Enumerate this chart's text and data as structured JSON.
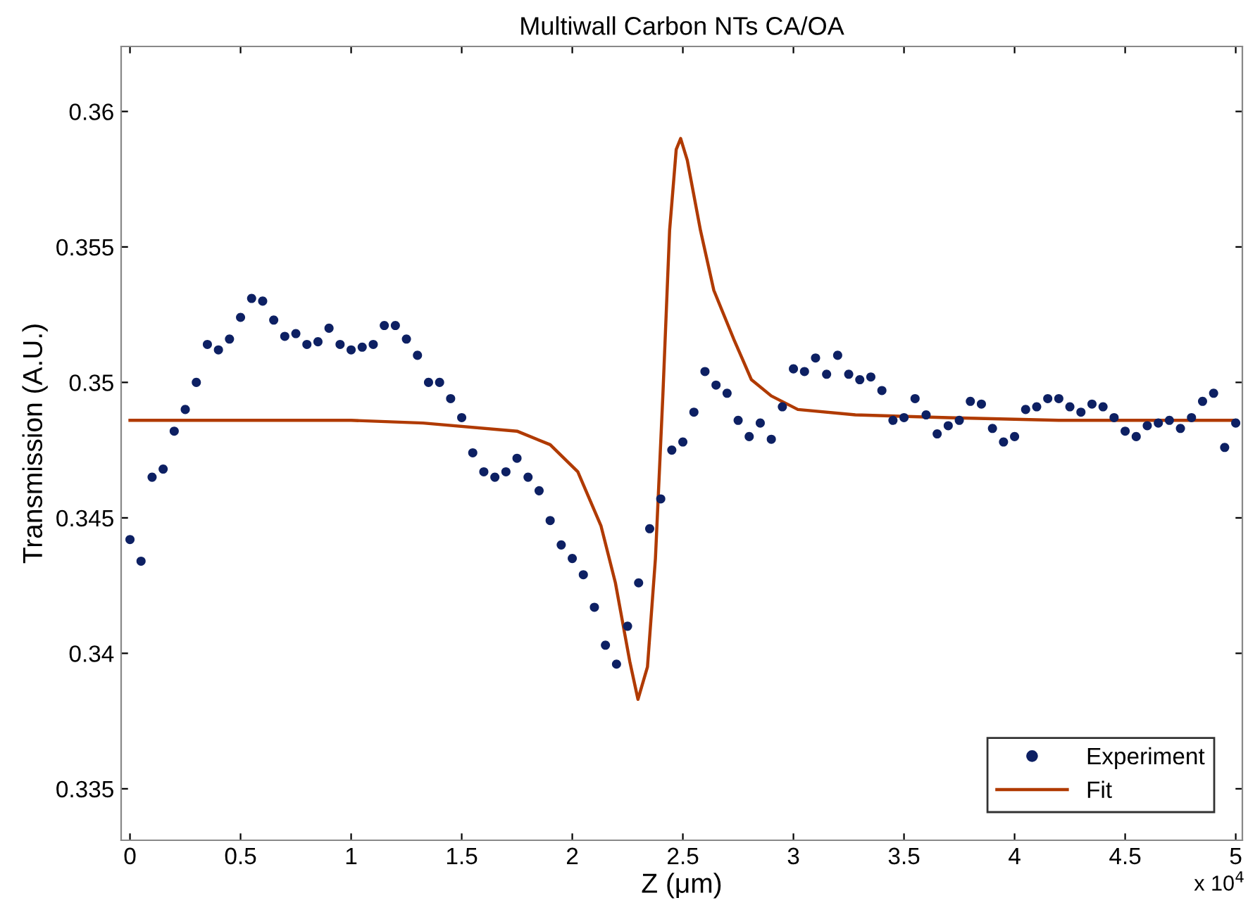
{
  "chart_data": {
    "type": "scatter",
    "title": "Multiwall Carbon NTs CA/OA",
    "xlabel": "Z (μm)",
    "ylabel": "Transmission (A.U.)",
    "annotations": [
      "x 10$^{4}$"
    ],
    "xlim": [
      -0.04,
      5.03
    ],
    "ylim": [
      0.3331,
      0.3624
    ],
    "xticks": [
      0,
      0.5,
      1,
      1.5,
      2,
      2.5,
      3,
      3.5,
      4,
      4.5,
      5
    ],
    "yticks": [
      0.335,
      0.34,
      0.345,
      0.35,
      0.355,
      0.36
    ],
    "grid": false,
    "legend": "bottom right",
    "series": [
      {
        "name": "Experiment",
        "marker": "circle",
        "color": "#0d2063",
        "x": [
          0,
          0.05,
          0.1,
          0.15,
          0.2,
          0.25,
          0.3,
          0.35,
          0.4,
          0.45,
          0.5,
          0.55,
          0.6,
          0.65,
          0.7,
          0.75,
          0.8,
          0.85,
          0.9,
          0.95,
          1,
          1.05,
          1.1,
          1.15,
          1.2,
          1.25,
          1.3,
          1.35,
          1.4,
          1.45,
          1.5,
          1.55,
          1.6,
          1.65,
          1.7,
          1.75,
          1.8,
          1.85,
          1.9,
          1.95,
          2,
          2.05,
          2.1,
          2.15,
          2.2,
          2.25,
          2.3,
          2.35,
          2.4,
          2.45,
          2.5,
          2.55,
          2.6,
          2.65,
          2.7,
          2.75,
          2.8,
          2.85,
          2.9,
          2.95,
          3,
          3.05,
          3.1,
          3.15,
          3.2,
          3.25,
          3.3,
          3.35,
          3.4,
          3.45,
          3.5,
          3.55,
          3.6,
          3.65,
          3.7,
          3.75,
          3.8,
          3.85,
          3.9,
          3.95,
          4,
          4.05,
          4.1,
          4.15,
          4.2,
          4.25,
          4.3,
          4.35,
          4.4,
          4.45,
          4.5,
          4.55,
          4.6,
          4.65,
          4.7,
          4.75,
          4.8,
          4.85,
          4.9,
          4.95,
          5
        ],
        "values": [
          0.3442,
          0.3434,
          0.3465,
          0.3468,
          0.3482,
          0.349,
          0.35,
          0.3514,
          0.3512,
          0.3516,
          0.3524,
          0.3531,
          0.353,
          0.3523,
          0.3517,
          0.3518,
          0.3514,
          0.3515,
          0.352,
          0.3514,
          0.3512,
          0.3513,
          0.3514,
          0.3521,
          0.3521,
          0.3516,
          0.351,
          0.35,
          0.35,
          0.3494,
          0.3487,
          0.3474,
          0.3467,
          0.3465,
          0.3467,
          0.3472,
          0.3465,
          0.346,
          0.3449,
          0.344,
          0.3435,
          0.3429,
          0.3417,
          0.3403,
          0.3396,
          0.341,
          0.3426,
          0.3446,
          0.3457,
          0.3475,
          0.3478,
          0.3489,
          0.3504,
          0.3499,
          0.3496,
          0.3486,
          0.348,
          0.3485,
          0.3479,
          0.3491,
          0.3505,
          0.3504,
          0.3509,
          0.3503,
          0.351,
          0.3503,
          0.3501,
          0.3502,
          0.3497,
          0.3486,
          0.3487,
          0.3494,
          0.3488,
          0.3481,
          0.3484,
          0.3486,
          0.3493,
          0.3492,
          0.3483,
          0.3478,
          0.348,
          0.349,
          0.3491,
          0.3494,
          0.3494,
          0.3491,
          0.3489,
          0.3492,
          0.3491,
          0.3487,
          0.3482,
          0.348,
          0.3484,
          0.3485,
          0.3486,
          0.3483,
          0.3487,
          0.3493,
          0.3496,
          0.3476,
          0.3485
        ]
      },
      {
        "name": "Fit",
        "type": "line",
        "marker": "none",
        "line_style": "solid",
        "color": "#b03a00",
        "x": [
          0,
          0.5,
          1,
          1.325,
          1.75,
          1.9,
          2.025,
          2.13,
          2.195,
          2.26,
          2.297,
          2.34,
          2.376,
          2.41,
          2.44,
          2.47,
          2.49,
          2.52,
          2.58,
          2.64,
          2.73,
          2.81,
          2.9,
          3.02,
          3.28,
          3.7,
          4.2,
          5
        ],
        "values": [
          0.3486,
          0.3486,
          0.3486,
          0.3485,
          0.3482,
          0.3477,
          0.3467,
          0.3447,
          0.3426,
          0.3397,
          0.3383,
          0.3395,
          0.3435,
          0.3496,
          0.3556,
          0.3586,
          0.359,
          0.3582,
          0.3556,
          0.3534,
          0.3516,
          0.3501,
          0.3495,
          0.349,
          0.3488,
          0.3487,
          0.3486,
          0.3486
        ]
      }
    ]
  }
}
